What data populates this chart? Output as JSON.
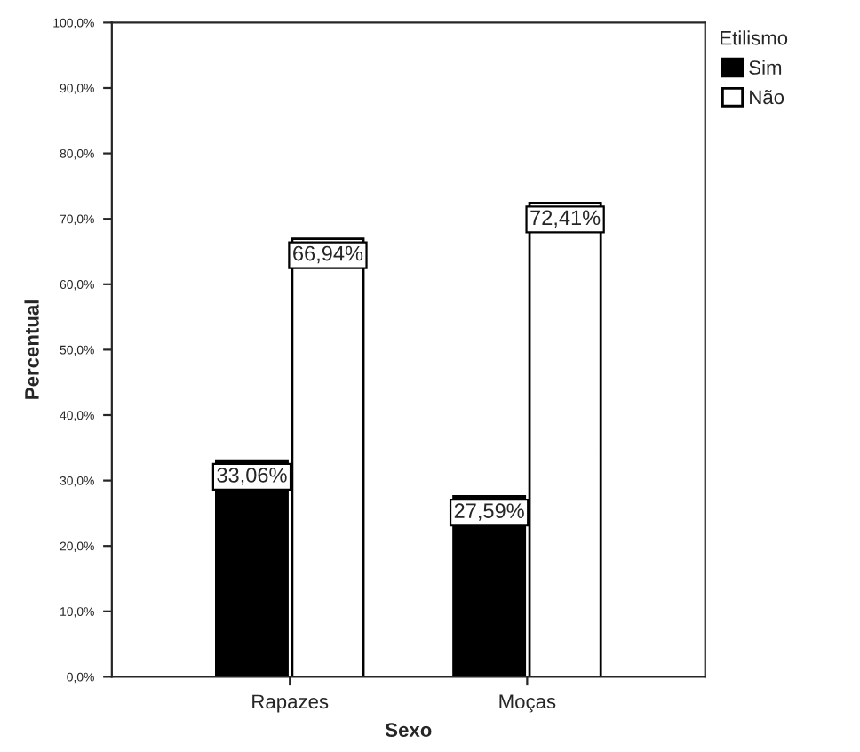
{
  "chart_data": {
    "type": "bar",
    "xlabel": "Sexo",
    "ylabel": "Percentual",
    "legend_title": "Etilismo",
    "legend": "top right",
    "categories": [
      "Rapazes",
      "Moças"
    ],
    "series": [
      {
        "name": "Sim",
        "color": "#000000",
        "values": [
          33.06,
          27.59
        ],
        "value_labels": [
          "33,06%",
          "27,59%"
        ]
      },
      {
        "name": "Não",
        "color": "#ffffff",
        "values": [
          66.94,
          72.41
        ],
        "value_labels": [
          "66,94%",
          "72,41%"
        ]
      }
    ],
    "ylim": [
      0,
      100
    ],
    "yticks": [
      {
        "value": 0,
        "label": "0,0%"
      },
      {
        "value": 10,
        "label": "10,0%"
      },
      {
        "value": 20,
        "label": "20,0%"
      },
      {
        "value": 30,
        "label": "30,0%"
      },
      {
        "value": 40,
        "label": "40,0%"
      },
      {
        "value": 50,
        "label": "50,0%"
      },
      {
        "value": 60,
        "label": "60,0%"
      },
      {
        "value": 70,
        "label": "70,0%"
      },
      {
        "value": 80,
        "label": "80,0%"
      },
      {
        "value": 90,
        "label": "90,0%"
      },
      {
        "value": 100,
        "label": "100,0%"
      }
    ],
    "grid": false
  }
}
